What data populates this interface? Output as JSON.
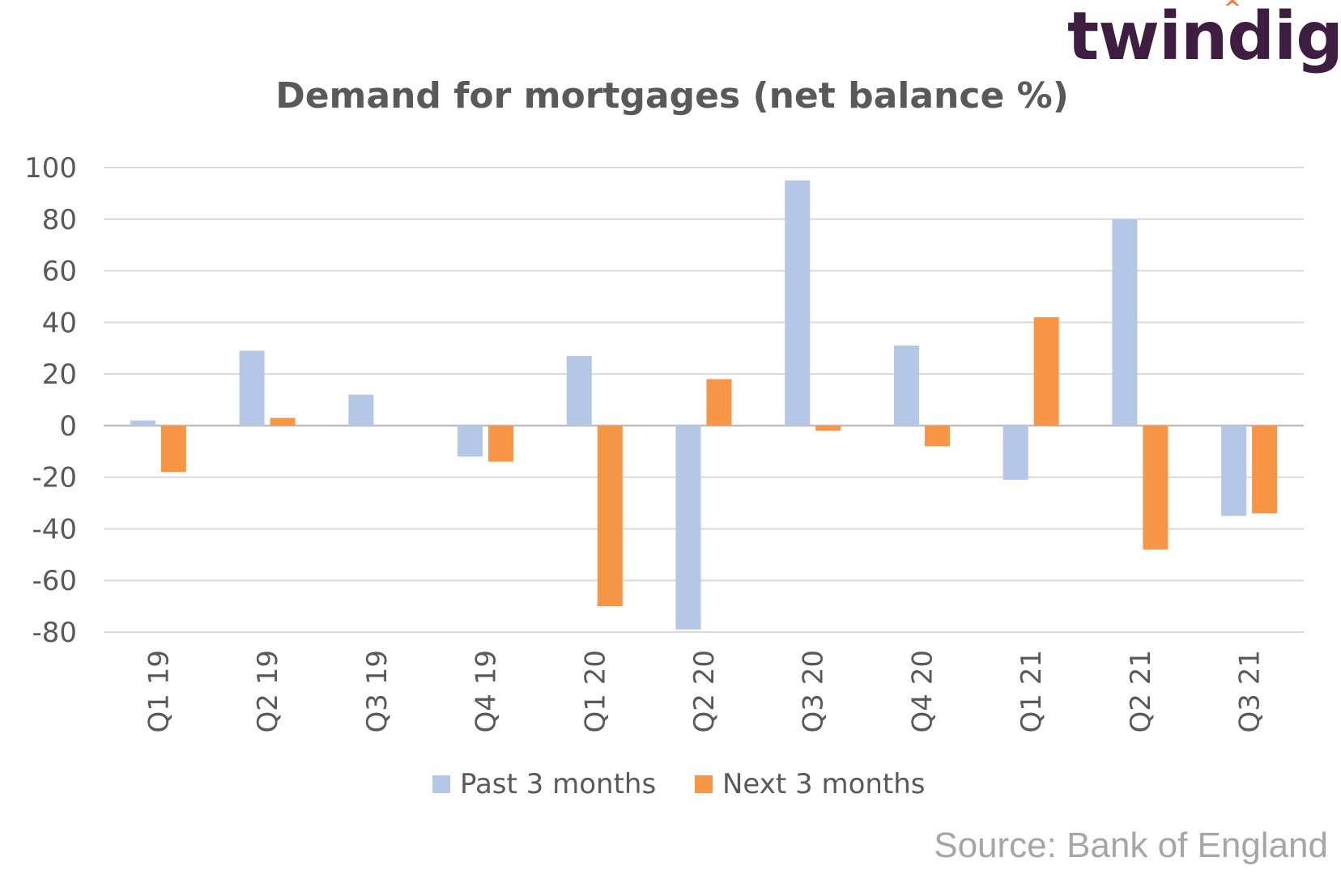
{
  "brand": {
    "name": "twindig",
    "accent_color": "#f07b3f",
    "text_color": "#3d1e40"
  },
  "source_note": "Source: Bank of England",
  "chart_data": {
    "type": "bar",
    "title": "Demand for mortgages (net balance %)",
    "xlabel": "",
    "ylabel": "",
    "categories": [
      "Q1 19",
      "Q2 19",
      "Q3 19",
      "Q4 19",
      "Q1 20",
      "Q2 20",
      "Q3 20",
      "Q4 20",
      "Q1 21",
      "Q2 21",
      "Q3 21"
    ],
    "series": [
      {
        "name": "Past 3 months",
        "color": "#b4c7e7",
        "values": [
          2,
          29,
          12,
          -12,
          27,
          -79,
          95,
          31,
          -21,
          80,
          -35
        ]
      },
      {
        "name": "Next 3 months",
        "color": "#f79646",
        "values": [
          -18,
          3,
          0,
          -14,
          -70,
          18,
          -2,
          -8,
          42,
          -48,
          -34
        ]
      }
    ],
    "ylim": [
      -80,
      100
    ],
    "yticks": [
      100,
      80,
      60,
      40,
      20,
      0,
      -20,
      -40,
      -60,
      -80
    ],
    "grid": true,
    "legend": "bottom-center"
  }
}
